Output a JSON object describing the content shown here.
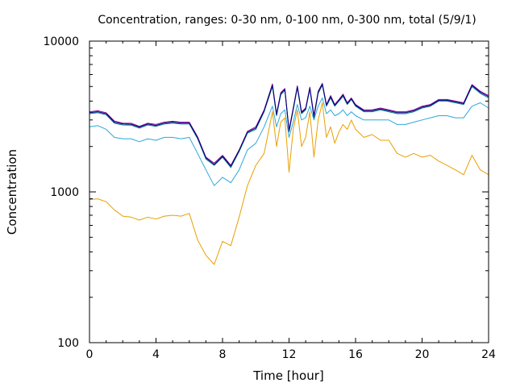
{
  "chart_data": {
    "type": "line",
    "title": "Concentration, ranges: 0-30 nm, 0-100 nm, 0-300 nm, total (5/9/1)",
    "xlabel": "Time [hour]",
    "ylabel": "Concentration",
    "xlim": [
      0,
      24
    ],
    "ylim": [
      100,
      10000
    ],
    "yscale": "log",
    "xticks": [
      0,
      4,
      8,
      12,
      16,
      20,
      24
    ],
    "xtick_labels": [
      "0",
      "4",
      "8",
      "12",
      "16",
      "20",
      "24"
    ],
    "yticks": [
      100,
      1000,
      10000
    ],
    "ytick_labels": [
      "100",
      "1000",
      "10000"
    ],
    "grid": false,
    "legend": false,
    "x": [
      0,
      0.5,
      1,
      1.5,
      2,
      2.5,
      3,
      3.5,
      4,
      4.5,
      5,
      5.5,
      6,
      6.5,
      7,
      7.5,
      8,
      8.5,
      9,
      9.5,
      10,
      10.5,
      11,
      11.25,
      11.5,
      11.75,
      12,
      12.25,
      12.5,
      12.75,
      13,
      13.25,
      13.5,
      13.75,
      14,
      14.25,
      14.5,
      14.75,
      15,
      15.25,
      15.5,
      15.75,
      16,
      16.5,
      17,
      17.5,
      18,
      18.5,
      19,
      19.5,
      20,
      20.5,
      21,
      21.5,
      22,
      22.5,
      23,
      23.5,
      24
    ],
    "series": [
      {
        "color": "#e8a000",
        "values": [
          890,
          900,
          860,
          760,
          690,
          680,
          650,
          680,
          660,
          690,
          700,
          690,
          720,
          480,
          380,
          330,
          470,
          440,
          680,
          1100,
          1500,
          1800,
          3400,
          2000,
          2900,
          3100,
          1350,
          2600,
          3500,
          2000,
          2300,
          3400,
          1700,
          3000,
          3900,
          2300,
          2700,
          2100,
          2500,
          2800,
          2600,
          3000,
          2600,
          2300,
          2400,
          2200,
          2200,
          1800,
          1700,
          1800,
          1700,
          1750,
          1600,
          1500,
          1400,
          1300,
          1750,
          1400,
          1300
        ]
      },
      {
        "color": "#2ea8d8",
        "values": [
          2700,
          2750,
          2600,
          2300,
          2250,
          2250,
          2150,
          2250,
          2200,
          2300,
          2300,
          2250,
          2300,
          1800,
          1400,
          1100,
          1250,
          1150,
          1400,
          1900,
          2100,
          2700,
          3700,
          2700,
          3300,
          3500,
          2300,
          2900,
          3800,
          3000,
          3100,
          3700,
          3000,
          3700,
          4200,
          3300,
          3500,
          3200,
          3300,
          3500,
          3200,
          3400,
          3200,
          3000,
          3000,
          3000,
          3000,
          2800,
          2800,
          2900,
          3000,
          3100,
          3200,
          3200,
          3100,
          3100,
          3700,
          3900,
          3600
        ]
      },
      {
        "color": "#008080",
        "values": [
          3300,
          3350,
          3250,
          2850,
          2780,
          2770,
          2650,
          2780,
          2720,
          2820,
          2860,
          2820,
          2820,
          2250,
          1650,
          1500,
          1700,
          1450,
          1850,
          2450,
          2600,
          3400,
          5000,
          3200,
          4400,
          4700,
          2500,
          3500,
          4900,
          3300,
          3500,
          4800,
          3100,
          4500,
          5100,
          3700,
          4200,
          3700,
          4000,
          4300,
          3800,
          4100,
          3700,
          3400,
          3400,
          3500,
          3400,
          3300,
          3300,
          3400,
          3600,
          3700,
          4000,
          4000,
          3900,
          3800,
          5000,
          4500,
          4200
        ]
      },
      {
        "color": "#8b0096",
        "values": [
          3400,
          3450,
          3350,
          2950,
          2850,
          2850,
          2720,
          2850,
          2800,
          2900,
          2940,
          2900,
          2900,
          2320,
          1700,
          1550,
          1750,
          1500,
          1900,
          2520,
          2700,
          3500,
          5200,
          3300,
          4550,
          4850,
          2580,
          3600,
          5050,
          3400,
          3600,
          4950,
          3200,
          4650,
          5250,
          3800,
          4350,
          3800,
          4100,
          4450,
          3900,
          4200,
          3800,
          3500,
          3500,
          3600,
          3500,
          3400,
          3400,
          3500,
          3700,
          3800,
          4100,
          4100,
          4000,
          3900,
          5150,
          4650,
          4350
        ]
      },
      {
        "color": "#000080",
        "values": [
          3350,
          3400,
          3300,
          2900,
          2820,
          2810,
          2690,
          2820,
          2760,
          2860,
          2900,
          2860,
          2860,
          2290,
          1680,
          1520,
          1720,
          1480,
          1880,
          2490,
          2650,
          3450,
          5100,
          3250,
          4480,
          4780,
          2540,
          3550,
          4980,
          3350,
          3550,
          4880,
          3150,
          4580,
          5180,
          3750,
          4280,
          3750,
          4050,
          4380,
          3850,
          4150,
          3750,
          3450,
          3450,
          3550,
          3450,
          3350,
          3350,
          3450,
          3650,
          3750,
          4050,
          4050,
          3950,
          3850,
          5080,
          4580,
          4280
        ]
      }
    ]
  }
}
